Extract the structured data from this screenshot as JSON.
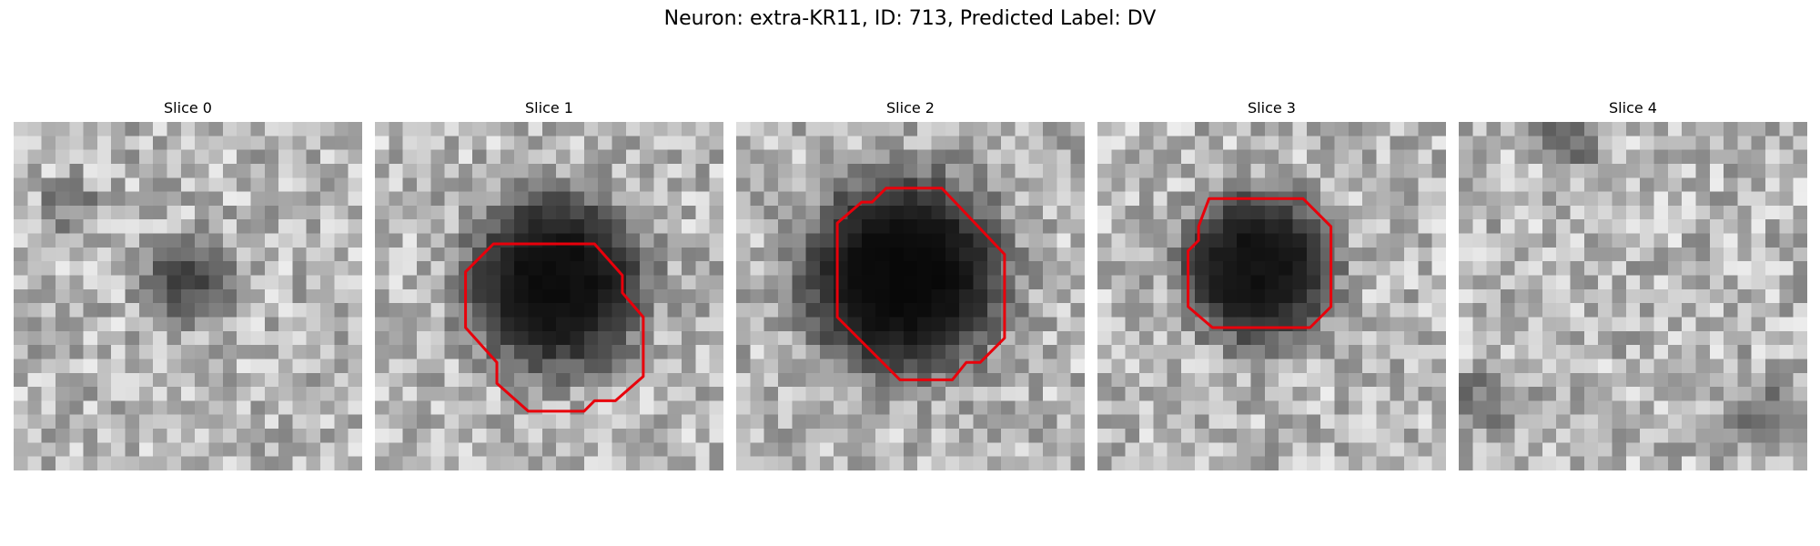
{
  "figure": {
    "title": "Neuron: extra-KR11, ID: 713, Predicted Label: DV"
  },
  "colors": {
    "contour": "#e8000b",
    "background": "#ffffff"
  },
  "slices": [
    {
      "title": "Slice 0",
      "has_contour": false
    },
    {
      "title": "Slice 1",
      "has_contour": true
    },
    {
      "title": "Slice 2",
      "has_contour": true
    },
    {
      "title": "Slice 3",
      "has_contour": true
    },
    {
      "title": "Slice 4",
      "has_contour": false
    }
  ]
}
